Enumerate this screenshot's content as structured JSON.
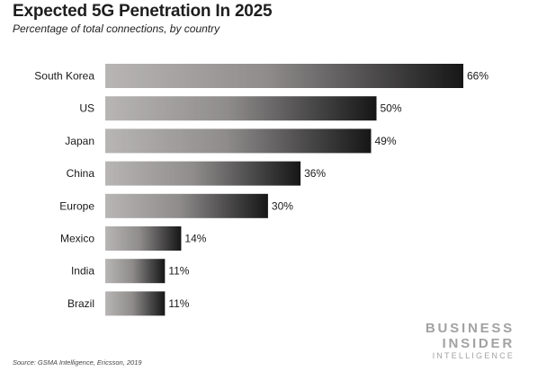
{
  "header": {
    "title": "Expected 5G Penetration In 2025",
    "subtitle": "Percentage of total connections, by country"
  },
  "chart_data": {
    "type": "bar",
    "orientation": "horizontal",
    "title": "Expected 5G Penetration In 2025",
    "subtitle": "Percentage of total connections, by country",
    "xlabel": "",
    "ylabel": "",
    "categories": [
      "South Korea",
      "US",
      "Japan",
      "China",
      "Europe",
      "Mexico",
      "India",
      "Brazil"
    ],
    "values": [
      66,
      50,
      49,
      36,
      30,
      14,
      11,
      11
    ],
    "value_labels": [
      "66%",
      "50%",
      "49%",
      "36%",
      "30%",
      "14%",
      "11%",
      "11%"
    ],
    "unit": "%",
    "grid": false,
    "legend": "none",
    "bar_gradient": [
      "#b8b5b5",
      "#161616"
    ]
  },
  "footer": {
    "source": "Source: GSMA Intelligence, Ericsson, 2019",
    "logo_line1": "BUSINESS",
    "logo_line2": "INSIDER",
    "logo_line3": "INTELLIGENCE"
  }
}
